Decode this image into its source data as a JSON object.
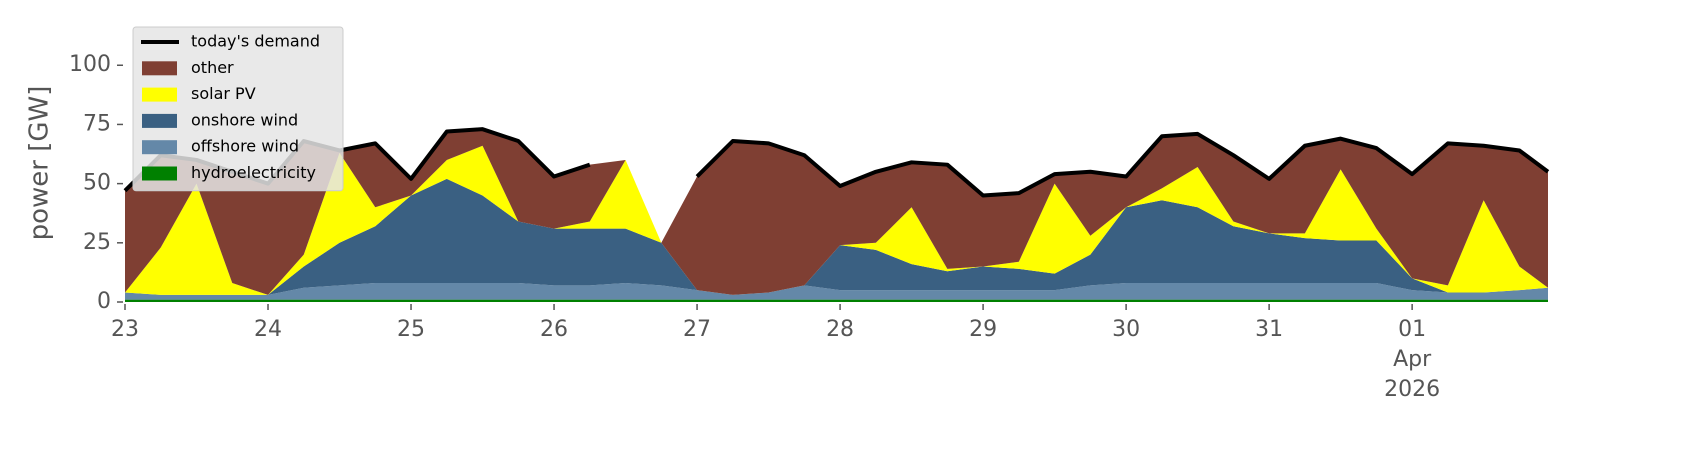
{
  "chart_data": {
    "type": "stacked_area",
    "y_label": "power [GW]",
    "x": [
      23,
      23.25,
      23.5,
      23.75,
      24,
      24.25,
      24.5,
      24.75,
      25,
      25.25,
      25.5,
      25.75,
      26,
      26.25,
      26.5,
      26.75,
      27,
      27.25,
      27.5,
      27.75,
      28,
      28.25,
      28.5,
      28.75,
      29,
      29.25,
      29.5,
      29.75,
      30,
      30.25,
      30.5,
      30.75,
      31,
      31.25,
      31.5,
      31.75,
      32,
      32.25,
      32.5,
      32.75,
      32.95
    ],
    "series": [
      {
        "name": "today's demand",
        "type": "line",
        "color": "#000000",
        "values": [
          47,
          62,
          60,
          55,
          50,
          68,
          64,
          67,
          52,
          72,
          73,
          68,
          53,
          58,
          null,
          null,
          53,
          68,
          67,
          62,
          49,
          55,
          59,
          58,
          45,
          46,
          54,
          55,
          53,
          70,
          71,
          62,
          52,
          66,
          69,
          65,
          54,
          67,
          66,
          64,
          55
        ]
      },
      {
        "name": "other",
        "type": "area",
        "color": "#7f3f33",
        "values": [
          43,
          39,
          10,
          47,
          47,
          48,
          1,
          27,
          7,
          12,
          7,
          34,
          22,
          24,
          0,
          0,
          48,
          65,
          63,
          55,
          25,
          30,
          19,
          44,
          30,
          29,
          4,
          27,
          13,
          22,
          14,
          28,
          23,
          37,
          13,
          34,
          44,
          60,
          23,
          49,
          49
        ]
      },
      {
        "name": "solar PV",
        "type": "area",
        "color": "#ffff00",
        "values": [
          0,
          20,
          47,
          5,
          0,
          5,
          38,
          8,
          0,
          8,
          21,
          0,
          0,
          3,
          29,
          0,
          0,
          0,
          0,
          0,
          0,
          3,
          24,
          1,
          0,
          3,
          38,
          8,
          0,
          5,
          17,
          2,
          0,
          2,
          30,
          5,
          0,
          3,
          39,
          10,
          0
        ]
      },
      {
        "name": "onshore wind",
        "type": "area",
        "color": "#3a6082",
        "values": [
          0,
          0,
          0,
          0,
          0,
          9,
          18,
          24,
          37,
          44,
          37,
          26,
          24,
          24,
          23,
          18,
          0,
          0,
          0,
          0,
          19,
          17,
          11,
          8,
          10,
          9,
          7,
          13,
          32,
          35,
          32,
          24,
          21,
          19,
          18,
          18,
          5,
          0,
          0,
          0,
          0
        ]
      },
      {
        "name": "offshore wind",
        "type": "area",
        "color": "#6488a8",
        "values": [
          3,
          2,
          2,
          2,
          2,
          5,
          6,
          7,
          7,
          7,
          7,
          7,
          6,
          6,
          7,
          6,
          4,
          2,
          3,
          6,
          4,
          4,
          4,
          4,
          4,
          4,
          4,
          6,
          7,
          7,
          7,
          7,
          7,
          7,
          7,
          7,
          4,
          3,
          3,
          4,
          5
        ]
      },
      {
        "name": "hydroelectricity",
        "type": "area",
        "color": "#008000",
        "values": [
          1,
          1,
          1,
          1,
          1,
          1,
          1,
          1,
          1,
          1,
          1,
          1,
          1,
          1,
          1,
          1,
          1,
          1,
          1,
          1,
          1,
          1,
          1,
          1,
          1,
          1,
          1,
          1,
          1,
          1,
          1,
          1,
          1,
          1,
          1,
          1,
          1,
          1,
          1,
          1,
          1
        ]
      }
    ],
    "xlim": [
      23,
      32.95
    ],
    "xticks": [
      23,
      24,
      25,
      26,
      27,
      28,
      29,
      30,
      31,
      {
        "value": 32,
        "label": "01"
      }
    ],
    "x_sublabels": [
      "Apr",
      "2026"
    ],
    "ylim": [
      0,
      117
    ],
    "yticks": [
      0,
      25,
      50,
      75,
      100
    ],
    "legend": "upper left"
  }
}
